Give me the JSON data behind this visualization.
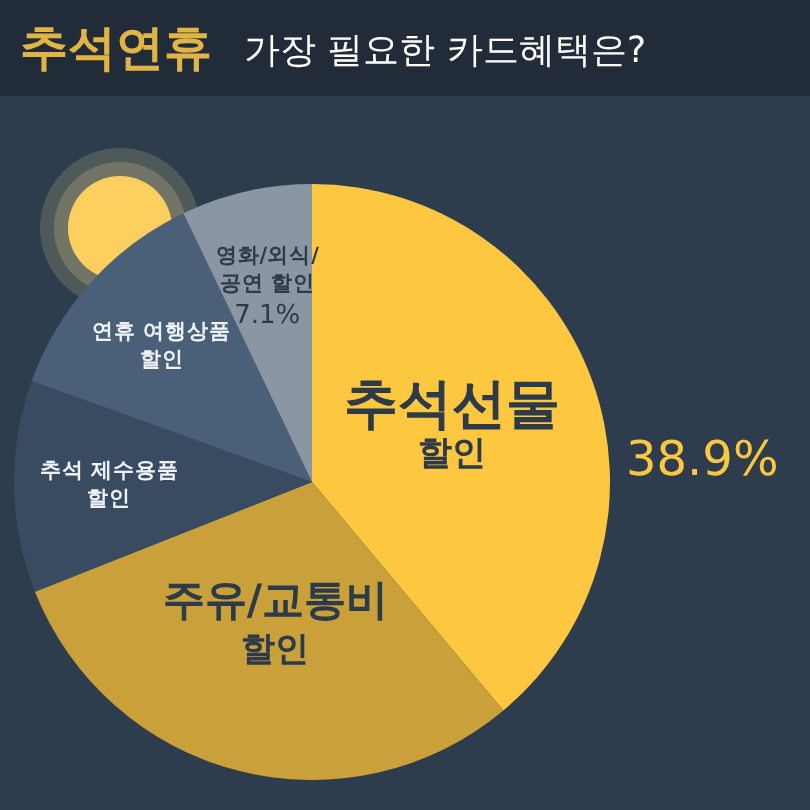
{
  "chart_data": {
    "type": "pie",
    "title": "추석연휴",
    "subtitle": "가장 필요한 카드혜택은?",
    "categories": [
      "추석선물\n할인",
      "주유/교통비\n할인",
      "추석 제수용품\n할인",
      "연휴 여행상품\n할인",
      "영화/외식/\n공연 할인"
    ],
    "values": [
      38.9,
      30.1,
      11.5,
      12.4,
      7.1
    ],
    "colors": [
      "#fdc83f",
      "#c9a03a",
      "#384b61",
      "#4a5f78",
      "#8b96a3"
    ],
    "value_labels": [
      "38.9%",
      null,
      null,
      null,
      "7.1%"
    ]
  }
}
